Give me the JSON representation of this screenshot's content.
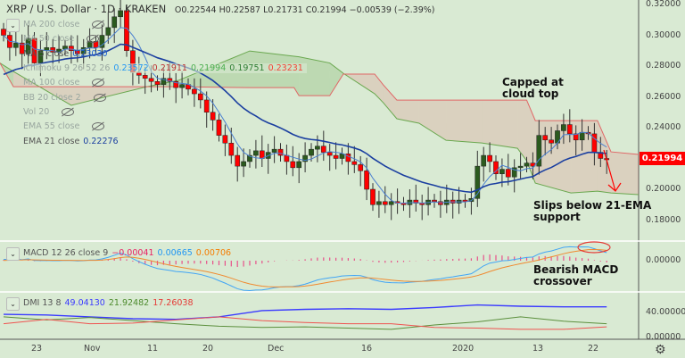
{
  "header": {
    "symbol": "XRP / U.S. Dollar · 1D · KRAKEN",
    "open": "O0.22544",
    "high": "H0.22587",
    "low": "L0.21731",
    "close": "C0.21994",
    "change": "−0.00539 (−2.39%)"
  },
  "indicators": [
    {
      "label": "MA 200 close",
      "hidden": true
    },
    {
      "label": "MA 50 close",
      "hidden": true
    },
    {
      "label": "MA 5 close",
      "value": "0.23030"
    },
    {
      "label": "Ichimoku 9 26 52 26",
      "values": [
        "0.23572",
        "0.21911",
        "0.21994",
        "0.19751",
        "0.23231"
      ]
    },
    {
      "label": "MA 100 close",
      "hidden": true
    },
    {
      "label": "BB 20 close 2",
      "hidden": true
    },
    {
      "label": "Vol 20",
      "hidden": true
    },
    {
      "label": "EMA 55 close",
      "hidden": true
    },
    {
      "label": "EMA 21 close",
      "value": "0.22276"
    }
  ],
  "macd_legend": {
    "label": "MACD 12 26 close 9",
    "hist": "−0.00041",
    "macd": "0.00665",
    "signal": "0.00706"
  },
  "dmi_legend": {
    "label": "DMI 13 8",
    "adx": "49.04130",
    "plus_di": "21.92482",
    "minus_di": "17.26038"
  },
  "price_axis": [
    "0.32000",
    "0.30000",
    "0.28000",
    "0.26000",
    "0.24000",
    "0.22000",
    "0.20000",
    "0.18000"
  ],
  "macd_axis": [
    "0.00000"
  ],
  "dmi_axis": [
    "40.00000",
    "0.00000"
  ],
  "last_price": "0.21994",
  "time_axis": [
    "23",
    "Nov",
    "11",
    "20",
    "Dec",
    "16",
    "2020",
    "13",
    "22"
  ],
  "annotations": {
    "capped": "Capped at\ncloud top",
    "slips": "Slips below 21-EMA\nsupport",
    "bearish": "Bearish MACD\ncrossover"
  },
  "colors": {
    "bg": "#d9ead3",
    "up": "#2b5a1e",
    "down": "#ff0000",
    "ema21": "#1b3fa0",
    "ma5": "#4a7fd0",
    "spanA": "#6aa84f",
    "spanB": "#e06666",
    "macd": "#42a5f5",
    "signal": "#f08a30",
    "hist": "#e8508a",
    "adx": "#3b3bff",
    "plusdi": "#5b8f3c",
    "minusdi": "#ef5350"
  },
  "chart_data": {
    "type": "candlestick",
    "start_date": "Oct 18",
    "closes": [
      0.3,
      0.292,
      0.295,
      0.288,
      0.298,
      0.282,
      0.29,
      0.292,
      0.289,
      0.291,
      0.293,
      0.29,
      0.288,
      0.292,
      0.296,
      0.292,
      0.3,
      0.305,
      0.312,
      0.316,
      0.29,
      0.276,
      0.274,
      0.272,
      0.27,
      0.268,
      0.272,
      0.27,
      0.266,
      0.268,
      0.265,
      0.262,
      0.258,
      0.25,
      0.245,
      0.235,
      0.23,
      0.222,
      0.215,
      0.218,
      0.222,
      0.225,
      0.22,
      0.224,
      0.226,
      0.222,
      0.218,
      0.214,
      0.218,
      0.222,
      0.226,
      0.228,
      0.224,
      0.222,
      0.22,
      0.223,
      0.218,
      0.216,
      0.212,
      0.2,
      0.19,
      0.192,
      0.19,
      0.192,
      0.191,
      0.19,
      0.193,
      0.191,
      0.19,
      0.193,
      0.192,
      0.19,
      0.193,
      0.191,
      0.193,
      0.192,
      0.194,
      0.215,
      0.222,
      0.218,
      0.21,
      0.213,
      0.208,
      0.214,
      0.215,
      0.217,
      0.215,
      0.235,
      0.232,
      0.23,
      0.238,
      0.242,
      0.236,
      0.232,
      0.237,
      0.236,
      0.224,
      0.22,
      0.21994
    ],
    "ylim": [
      0.17,
      0.32
    ],
    "cloud": [
      [
        -0.6,
        0.282,
        0.282
      ],
      [
        1.6,
        0.2765,
        0.2666
      ],
      [
        11,
        0.2545,
        0.2666
      ],
      [
        23.3,
        0.2666,
        0.2666
      ],
      [
        28.4,
        0.2707,
        0.2666
      ],
      [
        40,
        0.2898,
        0.266
      ],
      [
        47.2,
        0.2864,
        0.266
      ],
      [
        48,
        0.286,
        0.2608
      ],
      [
        53,
        0.282,
        0.2608
      ],
      [
        55.2,
        0.2753,
        0.2748
      ],
      [
        60.3,
        0.262,
        0.2748
      ],
      [
        61.7,
        0.2562,
        0.2678
      ],
      [
        63.9,
        0.2458,
        0.2579
      ],
      [
        67.5,
        0.2429,
        0.2579
      ],
      [
        71.9,
        0.2318,
        0.2579
      ],
      [
        77.7,
        0.2301,
        0.2579
      ],
      [
        83.5,
        0.2266,
        0.2579
      ],
      [
        85,
        0.2185,
        0.2579
      ],
      [
        86.4,
        0.204,
        0.2446
      ],
      [
        92.2,
        0.1976,
        0.2446
      ],
      [
        96.5,
        0.1988,
        0.2446
      ],
      [
        98.7,
        0.1976,
        0.2243
      ],
      [
        103.2,
        0.1965,
        0.2226
      ]
    ],
    "dmi": {
      "adx": [
        37,
        36,
        33,
        30,
        29,
        33,
        43,
        45,
        46,
        45,
        48,
        52,
        50,
        49,
        49
      ],
      "plus_di": [
        33,
        28,
        32,
        27,
        22,
        18,
        16,
        17,
        15,
        13,
        20,
        25,
        33,
        26,
        22
      ],
      "minus_di": [
        22,
        29,
        22,
        23,
        28,
        33,
        27,
        24,
        22,
        22,
        16,
        15,
        13,
        13,
        17
      ]
    }
  }
}
